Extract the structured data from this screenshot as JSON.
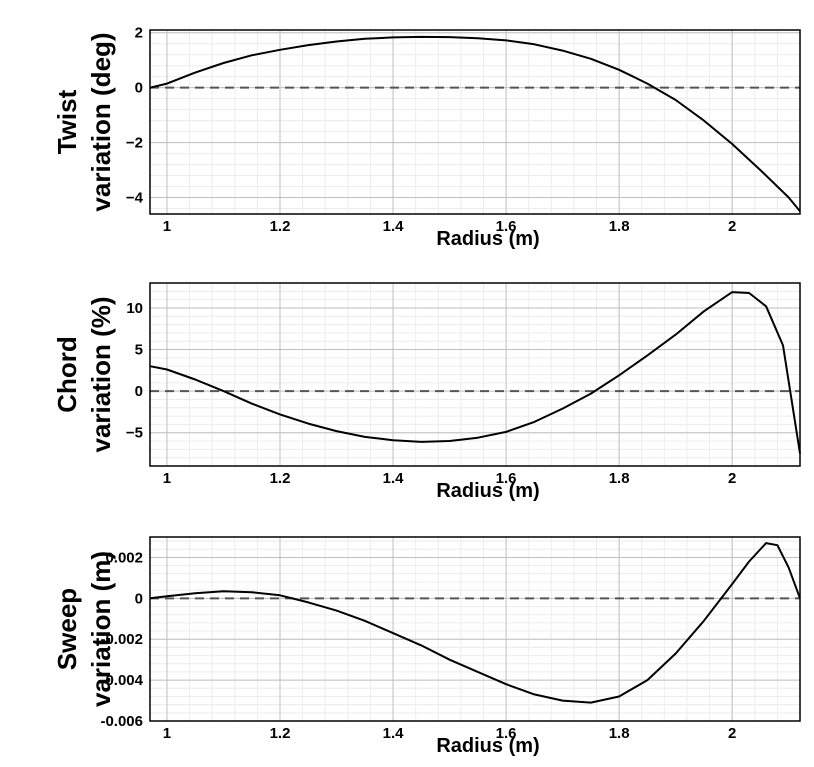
{
  "chart_data": [
    {
      "type": "line",
      "ylabel": [
        "Twist",
        "variation (deg)"
      ],
      "xlabel": "Radius (m)",
      "xlim": [
        0.97,
        2.12
      ],
      "ylim": [
        -4.6,
        2.1
      ],
      "x_ticks": [
        1,
        1.2,
        1.4,
        1.6,
        1.8,
        2
      ],
      "x_tick_labels": [
        "1",
        "1.2",
        "1.4",
        "1.6",
        "1.8",
        "2"
      ],
      "y_ticks": [
        2,
        0,
        -2,
        -4
      ],
      "y_tick_labels": [
        "2",
        "0",
        "−2",
        "−4"
      ],
      "grid": true,
      "reference_line": {
        "y": 0,
        "style": "dashed"
      },
      "series": [
        {
          "x": [
            0.97,
            1.0,
            1.05,
            1.1,
            1.15,
            1.2,
            1.25,
            1.3,
            1.35,
            1.4,
            1.45,
            1.5,
            1.55,
            1.6,
            1.65,
            1.7,
            1.75,
            1.8,
            1.85,
            1.9,
            1.95,
            2.0,
            2.05,
            2.1,
            2.12
          ],
          "y": [
            0.0,
            0.15,
            0.55,
            0.9,
            1.18,
            1.38,
            1.55,
            1.68,
            1.78,
            1.83,
            1.85,
            1.84,
            1.8,
            1.72,
            1.58,
            1.35,
            1.05,
            0.65,
            0.15,
            -0.45,
            -1.2,
            -2.05,
            -3.0,
            -4.0,
            -4.5
          ]
        }
      ]
    },
    {
      "type": "line",
      "ylabel": [
        "Chord",
        "variation (%)"
      ],
      "xlabel": "Radius (m)",
      "xlim": [
        0.97,
        2.12
      ],
      "ylim": [
        -9,
        13
      ],
      "x_ticks": [
        1,
        1.2,
        1.4,
        1.6,
        1.8,
        2
      ],
      "x_tick_labels": [
        "1",
        "1.2",
        "1.4",
        "1.6",
        "1.8",
        "2"
      ],
      "y_ticks": [
        10,
        5,
        0,
        -5
      ],
      "y_tick_labels": [
        "10",
        "5",
        "0",
        "−5"
      ],
      "grid": true,
      "reference_line": {
        "y": 0,
        "style": "dashed"
      },
      "series": [
        {
          "x": [
            0.97,
            1.0,
            1.05,
            1.1,
            1.15,
            1.2,
            1.25,
            1.3,
            1.35,
            1.4,
            1.45,
            1.5,
            1.55,
            1.6,
            1.65,
            1.7,
            1.75,
            1.8,
            1.85,
            1.9,
            1.95,
            2.0,
            2.03,
            2.06,
            2.09,
            2.12
          ],
          "y": [
            3.0,
            2.6,
            1.4,
            0.0,
            -1.5,
            -2.8,
            -3.9,
            -4.8,
            -5.5,
            -5.9,
            -6.1,
            -6.0,
            -5.6,
            -4.9,
            -3.7,
            -2.1,
            -0.3,
            1.9,
            4.3,
            6.8,
            9.6,
            11.9,
            11.8,
            10.2,
            5.5,
            -7.5
          ]
        }
      ]
    },
    {
      "type": "line",
      "ylabel": [
        "Sweep",
        "variation (m)"
      ],
      "xlabel": "Radius (m)",
      "xlim": [
        0.97,
        2.12
      ],
      "ylim": [
        -0.006,
        0.003
      ],
      "x_ticks": [
        1,
        1.2,
        1.4,
        1.6,
        1.8,
        2
      ],
      "x_tick_labels": [
        "1",
        "1.2",
        "1.4",
        "1.6",
        "1.8",
        "2"
      ],
      "y_ticks": [
        0.002,
        0,
        -0.002,
        -0.004,
        -0.006
      ],
      "y_tick_labels": [
        "0.002",
        "0",
        "-0.002",
        "-0.004",
        "-0.006"
      ],
      "grid": true,
      "reference_line": {
        "y": 0,
        "style": "dashed"
      },
      "series": [
        {
          "x": [
            0.97,
            1.0,
            1.05,
            1.1,
            1.15,
            1.2,
            1.25,
            1.3,
            1.35,
            1.4,
            1.45,
            1.5,
            1.55,
            1.6,
            1.65,
            1.7,
            1.75,
            1.8,
            1.85,
            1.9,
            1.95,
            2.0,
            2.03,
            2.06,
            2.08,
            2.1,
            2.12
          ],
          "y": [
            0.0,
            0.0001,
            0.00025,
            0.00035,
            0.0003,
            0.00015,
            -0.0002,
            -0.0006,
            -0.0011,
            -0.0017,
            -0.0023,
            -0.003,
            -0.0036,
            -0.0042,
            -0.0047,
            -0.005,
            -0.0051,
            -0.0048,
            -0.004,
            -0.0027,
            -0.0011,
            0.0007,
            0.0018,
            0.0027,
            0.0026,
            0.0015,
            0.0
          ]
        }
      ]
    }
  ]
}
